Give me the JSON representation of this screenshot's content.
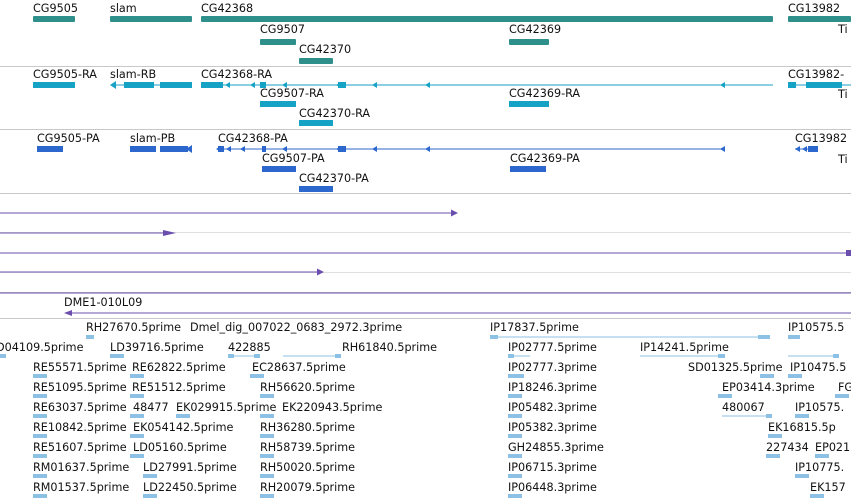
{
  "colors": {
    "gene": "#2f8f8a",
    "transcript_ra": "#16a2c4",
    "transcript_pa": "#2b67cc",
    "long_feature": "#6b4fae",
    "est": "#8cc0e4",
    "separator": "#c8c8c8"
  },
  "tracks": {
    "genes": {
      "labels": [
        "CG9505",
        "slam",
        "CG42368",
        "CG13982",
        "CG9507",
        "CG42369",
        "CG42370",
        "Ti"
      ]
    },
    "transcripts_ra": {
      "labels": [
        "CG9505-RA",
        "slam-RB",
        "CG42368-RA",
        "CG13982-",
        "CG9507-RA",
        "CG42369-RA",
        "CG42370-RA",
        "Ti"
      ]
    },
    "transcripts_pa": {
      "labels": [
        "CG9505-PA",
        "slam-PB",
        "CG42368-PA",
        "CG13982",
        "CG9507-PA",
        "CG42369-PA",
        "CG42370-PA",
        "Ti"
      ]
    },
    "clone": {
      "label": "DME1-010L09"
    },
    "ests": {
      "labels": [
        "RH27670.5prime",
        "Dmel_dig_007022_0683_2972.3prime",
        "IP17837.5prime",
        "IP10575.5",
        "D04109.5prime",
        "LD39716.5prime",
        "422885",
        "RH61840.5prime",
        "IP02777.5prime",
        "IP14241.5prime",
        "RE55571.5prime",
        "RE62822.5prime",
        "EC28637.5prime",
        "IP02777.3prime",
        "SD01325.5prime",
        "IP10475.5",
        "RE51095.5prime",
        "RE51512.5prime",
        "RH56620.5prime",
        "IP18246.3prime",
        "EP03414.3prime",
        "FG",
        "RE63037.5prime",
        "48477",
        "EK029915.5prime",
        "EK220943.5prime",
        "IP05482.3prime",
        "480067",
        "IP10575.",
        "RE10842.5prime",
        "EK054142.5prime",
        "RH36280.5prime",
        "IP05382.3prime",
        "EK16815.5p",
        "RE51607.5prime",
        "LD05160.5prime",
        "RH58739.5prime",
        "GH24855.3prime",
        "227434",
        "EP021",
        "RM01637.5prime",
        "LD27991.5prime",
        "RH50020.5prime",
        "IP06715.3prime",
        "IP10775.",
        "RM01537.5prime",
        "LD22450.5prime",
        "RH20079.5prime",
        "IP06448.3prime",
        "EK157"
      ]
    }
  }
}
